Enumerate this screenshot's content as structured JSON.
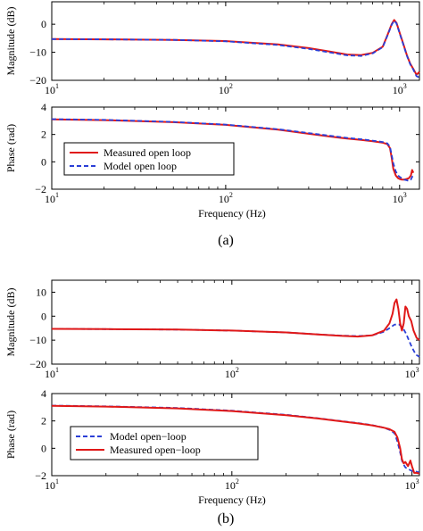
{
  "colors": {
    "measured": "#e01818",
    "model": "#2b3fd6"
  },
  "figure_labels": {
    "a": "(a)",
    "b": "(b)"
  },
  "chart_data": [
    {
      "id": "a_mag",
      "type": "line",
      "xscale": "log",
      "xlim": [
        10,
        1300
      ],
      "ylim": [
        -20,
        8
      ],
      "yticks": [
        -20,
        -10,
        0
      ],
      "xticks": [
        {
          "base": "10",
          "exp": "1"
        },
        {
          "base": "10",
          "exp": "2"
        },
        {
          "base": "10",
          "exp": "3"
        }
      ],
      "ylabel": "Magnitude (dB)",
      "xlabel": "",
      "series": [
        {
          "key": "measured",
          "x": [
            10,
            20,
            50,
            100,
            200,
            300,
            400,
            500,
            600,
            700,
            800,
            850,
            900,
            930,
            960,
            1000,
            1050,
            1100,
            1150,
            1200,
            1250,
            1300
          ],
          "y": [
            -5.3,
            -5.4,
            -5.6,
            -6,
            -7.2,
            -8.5,
            -9.8,
            -10.8,
            -11,
            -10.2,
            -8,
            -4,
            0,
            1.5,
            0.5,
            -3,
            -7,
            -11,
            -14,
            -16,
            -18,
            -17
          ]
        },
        {
          "key": "model",
          "x": [
            10,
            20,
            50,
            100,
            200,
            300,
            400,
            500,
            600,
            700,
            800,
            850,
            900,
            930,
            960,
            1000,
            1050,
            1100,
            1150,
            1200,
            1250,
            1300
          ],
          "y": [
            -5.3,
            -5.4,
            -5.6,
            -6.1,
            -7.4,
            -8.8,
            -10.1,
            -11.1,
            -11.3,
            -10.4,
            -8.2,
            -4.2,
            -0.2,
            1.3,
            0.3,
            -3.2,
            -7.2,
            -11.2,
            -14.2,
            -16.2,
            -18.5,
            -19
          ]
        }
      ]
    },
    {
      "id": "a_phase",
      "type": "line",
      "xscale": "log",
      "xlim": [
        10,
        1300
      ],
      "ylim": [
        -2,
        4
      ],
      "yticks": [
        -2,
        0,
        2,
        4
      ],
      "xticks": [
        {
          "base": "10",
          "exp": "1"
        },
        {
          "base": "10",
          "exp": "2"
        },
        {
          "base": "10",
          "exp": "3"
        }
      ],
      "ylabel": "Phase (rad)",
      "xlabel": "Frequency (Hz)",
      "legend": {
        "position": "lower-left",
        "entries": [
          {
            "key": "measured",
            "label": "Measured open loop"
          },
          {
            "key": "model",
            "label": "Model open loop"
          }
        ]
      },
      "series": [
        {
          "key": "measured",
          "x": [
            10,
            20,
            50,
            100,
            200,
            300,
            400,
            500,
            600,
            700,
            800,
            850,
            880,
            900,
            920,
            950,
            980,
            1000,
            1030,
            1060,
            1100,
            1130,
            1160,
            1180,
            1200
          ],
          "y": [
            3.1,
            3.05,
            2.9,
            2.7,
            2.35,
            2.05,
            1.85,
            1.7,
            1.6,
            1.5,
            1.4,
            1.3,
            1.0,
            0.3,
            -0.5,
            -1.0,
            -1.2,
            -1.25,
            -1.3,
            -1.3,
            -1.25,
            -1.2,
            -1.0,
            -0.6,
            -0.8
          ]
        },
        {
          "key": "model",
          "x": [
            10,
            20,
            50,
            100,
            200,
            300,
            400,
            500,
            600,
            700,
            800,
            850,
            880,
            900,
            920,
            950,
            980,
            1000,
            1030,
            1060,
            1100,
            1130,
            1160,
            1180,
            1200
          ],
          "y": [
            3.12,
            3.07,
            2.92,
            2.72,
            2.38,
            2.1,
            1.9,
            1.75,
            1.65,
            1.55,
            1.45,
            1.35,
            1.1,
            0.5,
            -0.1,
            -0.7,
            -1.0,
            -1.1,
            -1.2,
            -1.3,
            -1.35,
            -1.4,
            -1.3,
            -1.1,
            -1.0
          ]
        }
      ]
    },
    {
      "id": "b_mag",
      "type": "line",
      "xscale": "log",
      "xlim": [
        10,
        1100
      ],
      "ylim": [
        -20,
        15
      ],
      "yticks": [
        -20,
        -10,
        0,
        10
      ],
      "xticks": [
        {
          "base": "10",
          "exp": "1"
        },
        {
          "base": "10",
          "exp": "2"
        },
        {
          "base": "10",
          "exp": "3"
        }
      ],
      "ylabel": "Magnitude (dB)",
      "xlabel": "",
      "series": [
        {
          "key": "model",
          "x": [
            10,
            20,
            50,
            100,
            200,
            300,
            400,
            500,
            600,
            700,
            750,
            800,
            850,
            880,
            900,
            930,
            960,
            1000,
            1050,
            1100
          ],
          "y": [
            -5.3,
            -5.4,
            -5.6,
            -6,
            -6.8,
            -7.6,
            -8.1,
            -8.3,
            -8,
            -6.5,
            -5,
            -3.5,
            -3.5,
            -4.5,
            -5.5,
            -7.5,
            -10,
            -13,
            -16,
            -17
          ]
        },
        {
          "key": "measured",
          "x": [
            10,
            20,
            50,
            100,
            200,
            300,
            400,
            500,
            600,
            700,
            750,
            780,
            800,
            820,
            840,
            860,
            880,
            900,
            920,
            940,
            960,
            990,
            1020,
            1060,
            1100
          ],
          "y": [
            -5.3,
            -5.4,
            -5.6,
            -6,
            -6.8,
            -7.6,
            -8.2,
            -8.5,
            -8,
            -6,
            -3,
            1,
            5.5,
            7,
            3,
            -3,
            -6,
            -3,
            4,
            3,
            0,
            -2,
            -6,
            -9,
            -10
          ]
        }
      ]
    },
    {
      "id": "b_phase",
      "type": "line",
      "xscale": "log",
      "xlim": [
        10,
        1100
      ],
      "ylim": [
        -2,
        4
      ],
      "yticks": [
        -2,
        0,
        2,
        4
      ],
      "xticks": [
        {
          "base": "10",
          "exp": "1"
        },
        {
          "base": "10",
          "exp": "2"
        },
        {
          "base": "10",
          "exp": "3"
        }
      ],
      "ylabel": "Phase (rad)",
      "xlabel": "Frequency (Hz)",
      "legend": {
        "position": "lower-left",
        "entries": [
          {
            "key": "model",
            "label": "Model open−loop"
          },
          {
            "key": "measured",
            "label": "Measured open−loop"
          }
        ]
      },
      "series": [
        {
          "key": "model",
          "x": [
            10,
            20,
            50,
            100,
            200,
            300,
            400,
            500,
            600,
            700,
            750,
            800,
            830,
            860,
            880,
            900,
            920,
            950,
            980,
            1000,
            1050,
            1100
          ],
          "y": [
            3.12,
            3.07,
            2.95,
            2.75,
            2.45,
            2.2,
            2.0,
            1.85,
            1.7,
            1.5,
            1.35,
            1.1,
            0.5,
            -0.3,
            -0.9,
            -1.2,
            -1.4,
            -1.5,
            -1.6,
            -1.65,
            -1.7,
            -1.75
          ]
        },
        {
          "key": "measured",
          "x": [
            10,
            20,
            50,
            100,
            200,
            300,
            400,
            500,
            600,
            700,
            750,
            800,
            830,
            860,
            880,
            900,
            920,
            950,
            980,
            1000,
            1030,
            1060,
            1100
          ],
          "y": [
            3.1,
            3.05,
            2.92,
            2.72,
            2.42,
            2.18,
            1.98,
            1.82,
            1.68,
            1.5,
            1.4,
            1.2,
            0.8,
            0.0,
            -0.8,
            -1.1,
            -1.0,
            -1.3,
            -0.9,
            -1.3,
            -1.8,
            -1.8,
            -1.85
          ]
        }
      ]
    }
  ]
}
